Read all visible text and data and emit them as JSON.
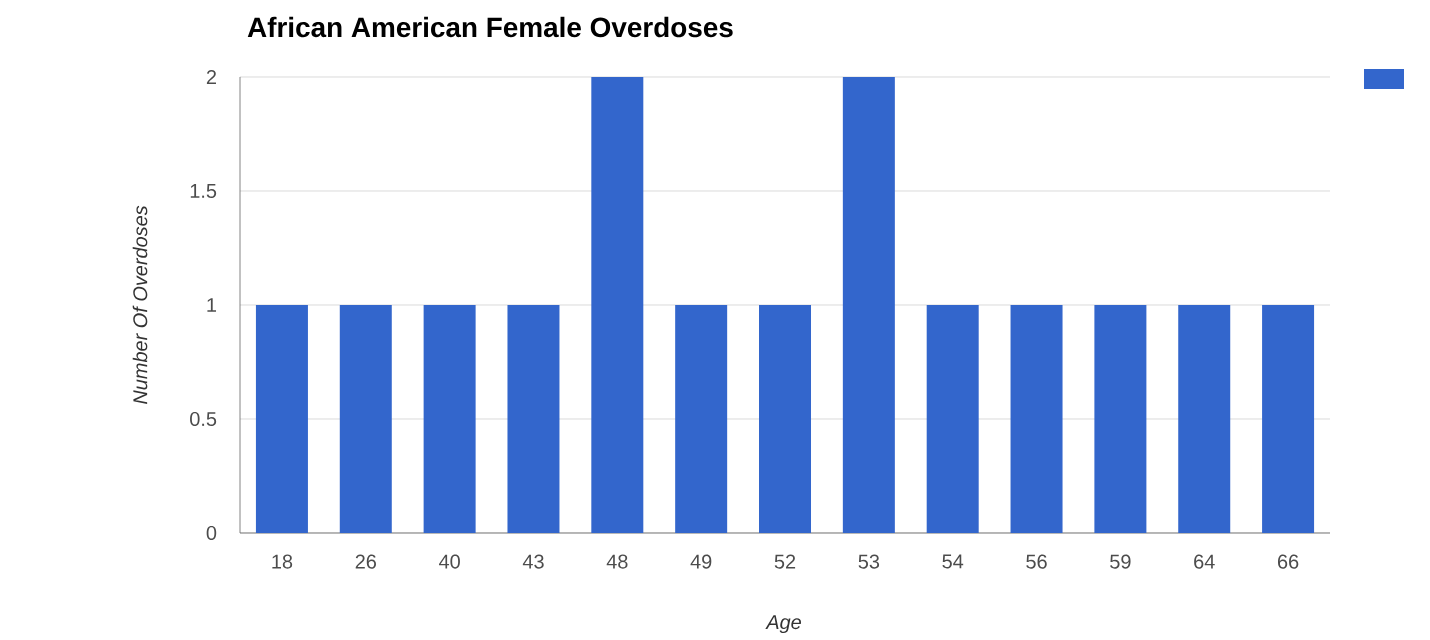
{
  "chart_data": {
    "type": "bar",
    "title": "African American Female Overdoses",
    "xlabel": "Age",
    "ylabel": "Number Of Overdoses",
    "categories": [
      "18",
      "26",
      "40",
      "43",
      "48",
      "49",
      "52",
      "53",
      "54",
      "56",
      "59",
      "64",
      "66"
    ],
    "series": [
      {
        "color": "#3366cc",
        "values": [
          1,
          1,
          1,
          1,
          2,
          1,
          1,
          2,
          1,
          1,
          1,
          1,
          1
        ]
      }
    ],
    "ylim": [
      0,
      2
    ],
    "yticks": [
      0,
      0.5,
      1,
      1.5,
      2
    ],
    "grid": "y"
  }
}
